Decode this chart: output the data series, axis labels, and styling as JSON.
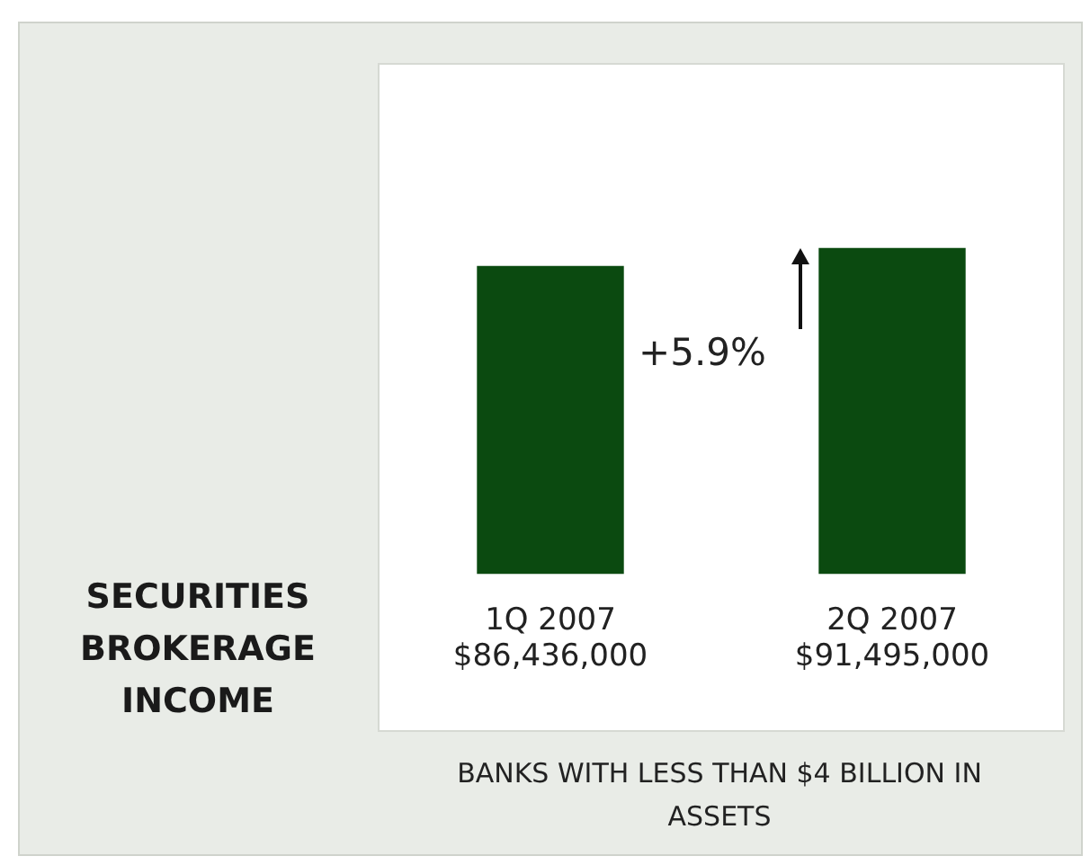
{
  "chart_data": {
    "type": "bar",
    "title": "SECURITIES BROKERAGE INCOME",
    "xlabel": "BANKS WITH LESS THAN $4 BILLION IN ASSETS",
    "categories": [
      "1Q 2007",
      "2Q 2007"
    ],
    "values": [
      86436000,
      91495000
    ],
    "value_labels": [
      "$86,436,000",
      "$91,495,000"
    ],
    "color": "#0b4a10",
    "annotations": [
      "+5.9%"
    ],
    "grid": false,
    "legend": false
  }
}
